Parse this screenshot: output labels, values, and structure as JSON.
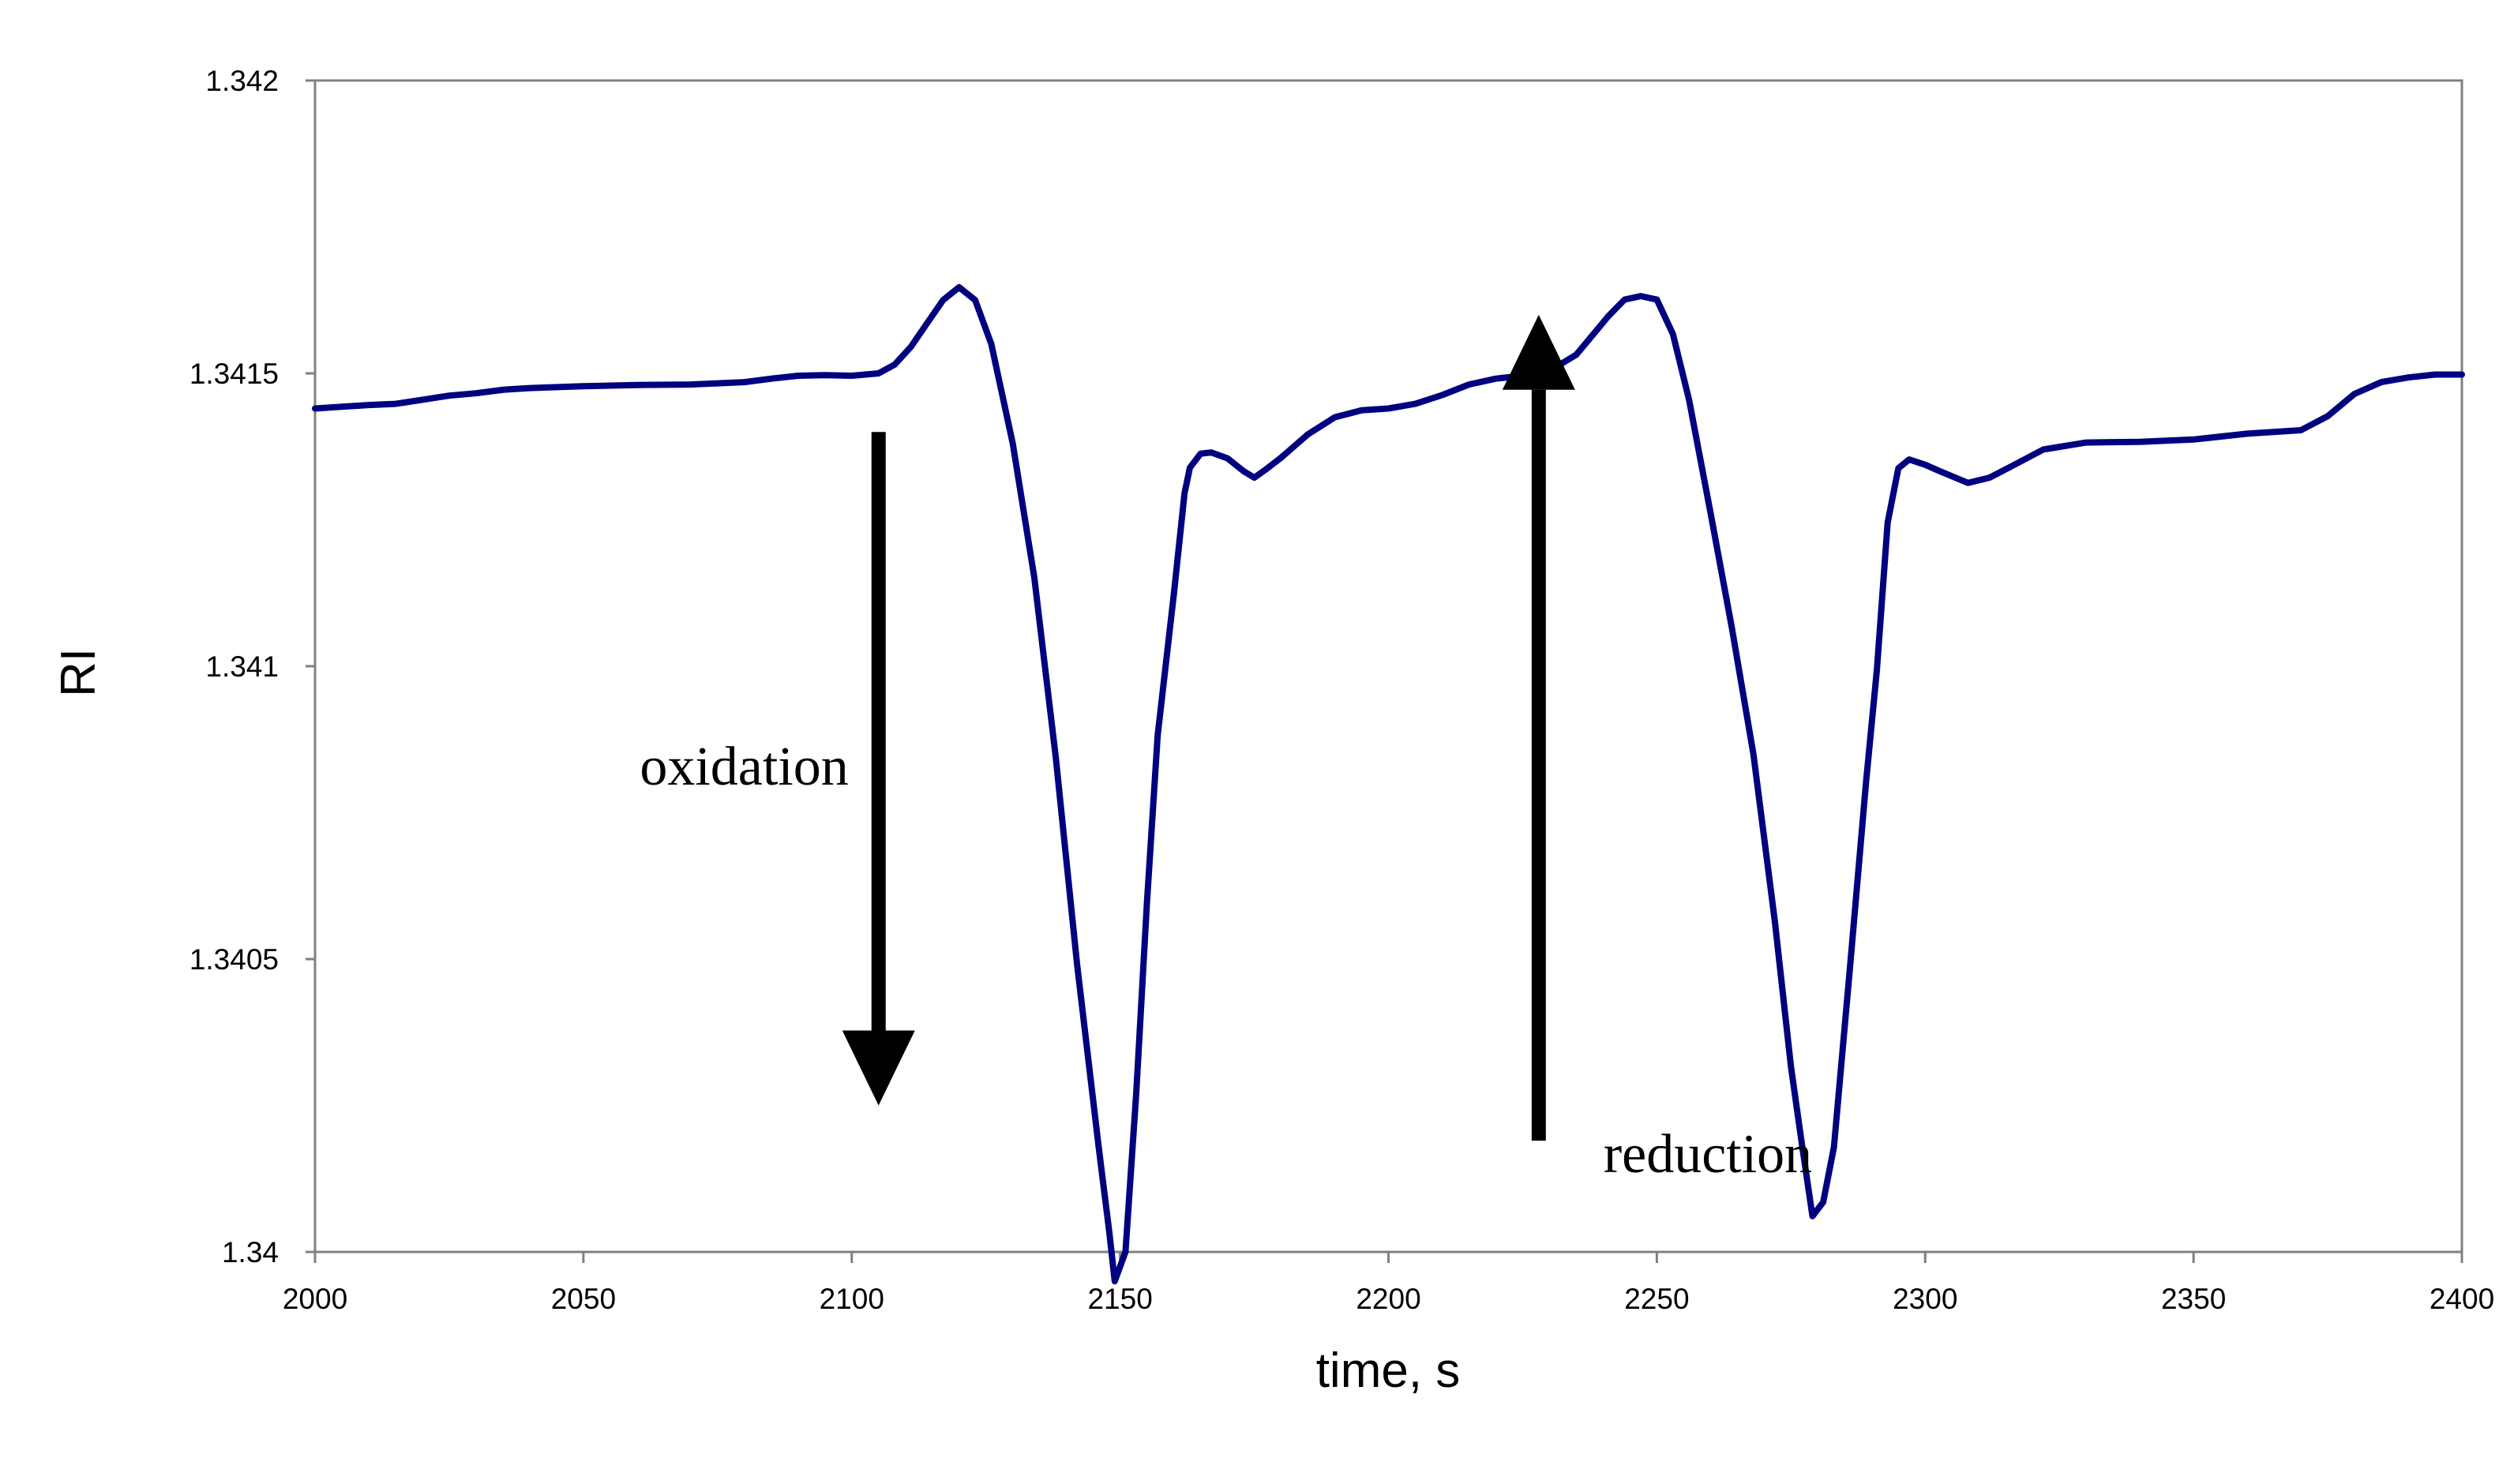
{
  "chart_data": {
    "type": "line",
    "title": "",
    "xlabel": "time, s",
    "ylabel": "RI",
    "xlim": [
      2000,
      2400
    ],
    "ylim": [
      1.34,
      1.342
    ],
    "xticks": [
      2000,
      2050,
      2100,
      2150,
      2200,
      2250,
      2300,
      2350,
      2400
    ],
    "yticks": [
      1.34,
      1.3405,
      1.341,
      1.3415,
      1.342
    ],
    "xtick_labels": [
      "2000",
      "2050",
      "2100",
      "2150",
      "2200",
      "2250",
      "2300",
      "2350",
      "2400"
    ],
    "ytick_labels": [
      "1.34",
      "1.3405",
      "1.341",
      "1.3415",
      "1.342"
    ],
    "grid": false,
    "line_color": "#000080",
    "series": [
      {
        "name": "RI",
        "x": [
          2000,
          2005,
          2010,
          2015,
          2020,
          2025,
          2030,
          2035,
          2040,
          2050,
          2060,
          2070,
          2080,
          2085,
          2090,
          2095,
          2100,
          2105,
          2108,
          2111,
          2114,
          2117,
          2120,
          2123,
          2126,
          2130,
          2134,
          2138,
          2142,
          2146,
          2148,
          2149,
          2151,
          2153,
          2155,
          2157,
          2160,
          2162,
          2163,
          2165,
          2167,
          2170,
          2173,
          2175,
          2177,
          2180,
          2185,
          2190,
          2195,
          2200,
          2205,
          2210,
          2215,
          2220,
          2225,
          2230,
          2235,
          2238,
          2241,
          2244,
          2247,
          2250,
          2253,
          2256,
          2260,
          2264,
          2268,
          2272,
          2275,
          2277,
          2279,
          2281,
          2283,
          2286,
          2289,
          2291,
          2293,
          2295,
          2297,
          2300,
          2303,
          2308,
          2312,
          2316,
          2322,
          2330,
          2340,
          2350,
          2360,
          2370,
          2375,
          2380,
          2385,
          2390,
          2395,
          2400
        ],
        "y": [
          1.34144,
          1.341443,
          1.341446,
          1.341448,
          1.341455,
          1.341462,
          1.341466,
          1.341472,
          1.341475,
          1.341478,
          1.34148,
          1.341481,
          1.341485,
          1.341491,
          1.341496,
          1.341497,
          1.341496,
          1.3415,
          1.341515,
          1.341545,
          1.341585,
          1.341625,
          1.341647,
          1.341625,
          1.34155,
          1.34138,
          1.341152,
          1.340845,
          1.34049,
          1.34018,
          1.340033,
          1.33995,
          1.34,
          1.34027,
          1.340596,
          1.340882,
          1.341122,
          1.341295,
          1.341339,
          1.341363,
          1.341365,
          1.341355,
          1.341333,
          1.341322,
          1.341335,
          1.341356,
          1.341396,
          1.341425,
          1.341437,
          1.34144,
          1.341448,
          1.341463,
          1.341481,
          1.341491,
          1.341496,
          1.341504,
          1.341532,
          1.341565,
          1.341598,
          1.341626,
          1.341632,
          1.341626,
          1.341567,
          1.341455,
          1.341262,
          1.341065,
          1.34085,
          1.340564,
          1.340316,
          1.340186,
          1.340061,
          1.340085,
          1.340179,
          1.340487,
          1.340804,
          1.340994,
          1.341245,
          1.341338,
          1.341353,
          1.341344,
          1.341332,
          1.341313,
          1.341322,
          1.341341,
          1.34137,
          1.341382,
          1.341383,
          1.341387,
          1.341397,
          1.341403,
          1.341427,
          1.341465,
          1.341485,
          1.341493,
          1.341498,
          1.341498
        ]
      }
    ],
    "annotations": [
      {
        "text": "oxidation",
        "arrow": "down",
        "x": 2105,
        "y_from": 1.3414,
        "y_to": 1.34025
      },
      {
        "text": "reduction",
        "arrow": "up",
        "x": 2228,
        "y_from": 1.34019,
        "y_to": 1.3416
      }
    ]
  }
}
